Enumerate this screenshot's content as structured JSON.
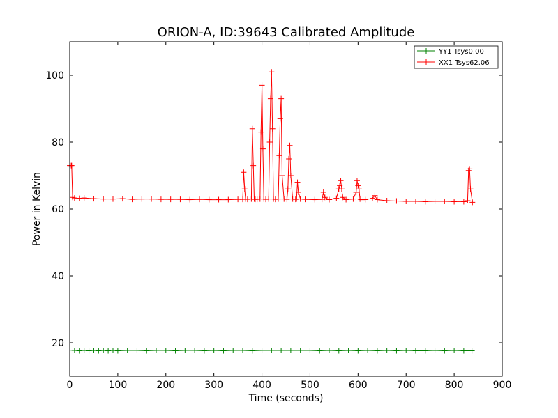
{
  "chart_data": {
    "type": "line",
    "title": "ORION-A, ID:39643 Calibrated Amplitude",
    "xlabel": "Time (seconds)",
    "ylabel": "Power in Kelvin",
    "xlim": [
      0,
      900
    ],
    "ylim": [
      10,
      110
    ],
    "xticks": [
      0,
      100,
      200,
      300,
      400,
      500,
      600,
      700,
      800,
      900
    ],
    "yticks": [
      20,
      40,
      60,
      80,
      100
    ],
    "grid": false,
    "legend_position": "top-right",
    "series": [
      {
        "name": "YY1 Tsys0.00",
        "color": "#008000",
        "marker": "+",
        "x": [
          0,
          10,
          20,
          30,
          40,
          50,
          60,
          70,
          80,
          90,
          100,
          120,
          140,
          160,
          180,
          200,
          220,
          240,
          260,
          280,
          300,
          320,
          340,
          360,
          380,
          400,
          420,
          440,
          460,
          480,
          500,
          520,
          540,
          560,
          580,
          600,
          620,
          640,
          660,
          680,
          700,
          720,
          740,
          760,
          780,
          800,
          820,
          837
        ],
        "y": [
          17.8,
          17.7,
          17.6,
          17.7,
          17.6,
          17.7,
          17.6,
          17.7,
          17.6,
          17.7,
          17.6,
          17.7,
          17.7,
          17.6,
          17.7,
          17.7,
          17.6,
          17.7,
          17.7,
          17.6,
          17.7,
          17.6,
          17.7,
          17.7,
          17.6,
          17.7,
          17.7,
          17.7,
          17.7,
          17.7,
          17.7,
          17.6,
          17.7,
          17.6,
          17.7,
          17.6,
          17.7,
          17.6,
          17.7,
          17.6,
          17.7,
          17.6,
          17.6,
          17.7,
          17.6,
          17.7,
          17.6,
          17.6
        ]
      },
      {
        "name": "XX1 Tsys62.06",
        "color": "#ff0000",
        "marker": "+",
        "x": [
          0,
          3,
          4,
          6,
          10,
          20,
          30,
          50,
          70,
          90,
          110,
          130,
          150,
          170,
          190,
          210,
          230,
          250,
          270,
          290,
          310,
          330,
          350,
          360,
          362,
          364,
          366,
          370,
          378,
          380,
          382,
          384,
          386,
          390,
          396,
          398,
          400,
          402,
          404,
          408,
          414,
          416,
          418,
          420,
          422,
          424,
          428,
          434,
          436,
          438,
          440,
          442,
          446,
          452,
          454,
          456,
          458,
          460,
          464,
          470,
          472,
          474,
          476,
          480,
          490,
          510,
          525,
          528,
          531,
          540,
          555,
          560,
          562,
          564,
          566,
          568,
          575,
          590,
          596,
          598,
          600,
          602,
          604,
          606,
          615,
          630,
          635,
          640,
          660,
          680,
          700,
          720,
          740,
          760,
          780,
          800,
          820,
          828,
          830,
          832,
          834,
          838
        ],
        "y": [
          73,
          73,
          73,
          63.5,
          63.3,
          63.2,
          63.3,
          63.1,
          63.0,
          63.0,
          63.1,
          62.9,
          63.0,
          63.0,
          62.9,
          62.9,
          62.9,
          62.8,
          62.9,
          62.8,
          62.8,
          62.8,
          62.9,
          62.9,
          71,
          66,
          63,
          62.9,
          63.0,
          84,
          73,
          63,
          62.9,
          62.9,
          63.0,
          83,
          97,
          78,
          63,
          62.9,
          63.0,
          80,
          93,
          101,
          84,
          63,
          62.9,
          63.0,
          76,
          87,
          93,
          70,
          63,
          62.9,
          66,
          75,
          79,
          70,
          63,
          62.9,
          63,
          68,
          65,
          63,
          62.9,
          62.8,
          62.9,
          65,
          63.5,
          62.8,
          63.2,
          66,
          67,
          68.5,
          66,
          63.5,
          62.8,
          63.0,
          65,
          68.5,
          67,
          66,
          63,
          62.8,
          62.8,
          63.2,
          64,
          62.8,
          62.5,
          62.4,
          62.3,
          62.3,
          62.2,
          62.3,
          62.3,
          62.2,
          62.2,
          62.5,
          71.5,
          72,
          66,
          62
        ]
      }
    ]
  }
}
